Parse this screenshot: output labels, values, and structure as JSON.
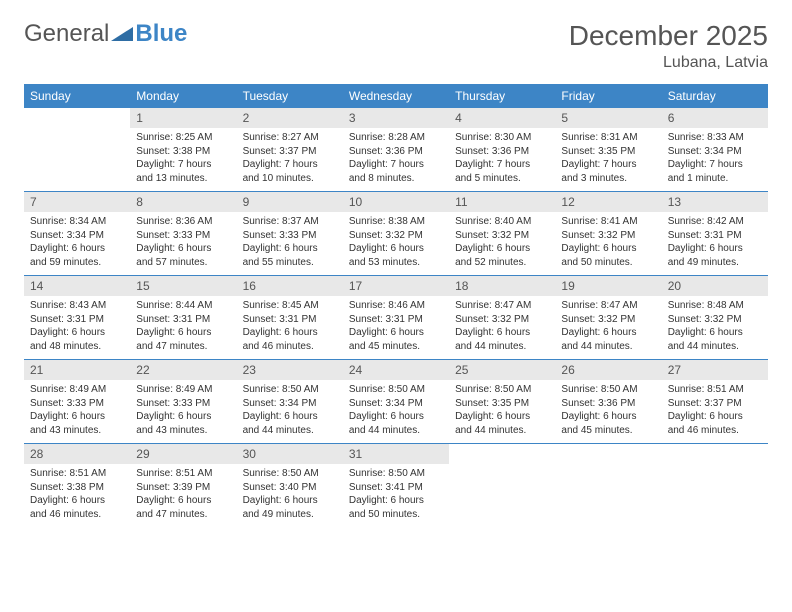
{
  "logo": {
    "text1": "General",
    "text2": "Blue"
  },
  "title": "December 2025",
  "location": "Lubana, Latvia",
  "colors": {
    "header_bg": "#3d85c6",
    "header_fg": "#ffffff",
    "daynum_bg": "#e8e8e8",
    "daynum_fg": "#555555",
    "body_fg": "#333333",
    "rule": "#3d85c6",
    "page_bg": "#ffffff",
    "title_fg": "#555555",
    "logo_blue": "#3d85c6"
  },
  "typography": {
    "title_fontsize": 28,
    "location_fontsize": 16,
    "header_fontsize": 12,
    "daynum_fontsize": 12,
    "body_fontsize": 10
  },
  "layout": {
    "columns": 7,
    "rows": 5,
    "cell_width_pct": 14.28
  },
  "weekdays": [
    "Sunday",
    "Monday",
    "Tuesday",
    "Wednesday",
    "Thursday",
    "Friday",
    "Saturday"
  ],
  "weeks": [
    [
      {
        "empty": true
      },
      {
        "n": "1",
        "sunrise": "Sunrise: 8:25 AM",
        "sunset": "Sunset: 3:38 PM",
        "daylight": "Daylight: 7 hours and 13 minutes."
      },
      {
        "n": "2",
        "sunrise": "Sunrise: 8:27 AM",
        "sunset": "Sunset: 3:37 PM",
        "daylight": "Daylight: 7 hours and 10 minutes."
      },
      {
        "n": "3",
        "sunrise": "Sunrise: 8:28 AM",
        "sunset": "Sunset: 3:36 PM",
        "daylight": "Daylight: 7 hours and 8 minutes."
      },
      {
        "n": "4",
        "sunrise": "Sunrise: 8:30 AM",
        "sunset": "Sunset: 3:36 PM",
        "daylight": "Daylight: 7 hours and 5 minutes."
      },
      {
        "n": "5",
        "sunrise": "Sunrise: 8:31 AM",
        "sunset": "Sunset: 3:35 PM",
        "daylight": "Daylight: 7 hours and 3 minutes."
      },
      {
        "n": "6",
        "sunrise": "Sunrise: 8:33 AM",
        "sunset": "Sunset: 3:34 PM",
        "daylight": "Daylight: 7 hours and 1 minute."
      }
    ],
    [
      {
        "n": "7",
        "sunrise": "Sunrise: 8:34 AM",
        "sunset": "Sunset: 3:34 PM",
        "daylight": "Daylight: 6 hours and 59 minutes."
      },
      {
        "n": "8",
        "sunrise": "Sunrise: 8:36 AM",
        "sunset": "Sunset: 3:33 PM",
        "daylight": "Daylight: 6 hours and 57 minutes."
      },
      {
        "n": "9",
        "sunrise": "Sunrise: 8:37 AM",
        "sunset": "Sunset: 3:33 PM",
        "daylight": "Daylight: 6 hours and 55 minutes."
      },
      {
        "n": "10",
        "sunrise": "Sunrise: 8:38 AM",
        "sunset": "Sunset: 3:32 PM",
        "daylight": "Daylight: 6 hours and 53 minutes."
      },
      {
        "n": "11",
        "sunrise": "Sunrise: 8:40 AM",
        "sunset": "Sunset: 3:32 PM",
        "daylight": "Daylight: 6 hours and 52 minutes."
      },
      {
        "n": "12",
        "sunrise": "Sunrise: 8:41 AM",
        "sunset": "Sunset: 3:32 PM",
        "daylight": "Daylight: 6 hours and 50 minutes."
      },
      {
        "n": "13",
        "sunrise": "Sunrise: 8:42 AM",
        "sunset": "Sunset: 3:31 PM",
        "daylight": "Daylight: 6 hours and 49 minutes."
      }
    ],
    [
      {
        "n": "14",
        "sunrise": "Sunrise: 8:43 AM",
        "sunset": "Sunset: 3:31 PM",
        "daylight": "Daylight: 6 hours and 48 minutes."
      },
      {
        "n": "15",
        "sunrise": "Sunrise: 8:44 AM",
        "sunset": "Sunset: 3:31 PM",
        "daylight": "Daylight: 6 hours and 47 minutes."
      },
      {
        "n": "16",
        "sunrise": "Sunrise: 8:45 AM",
        "sunset": "Sunset: 3:31 PM",
        "daylight": "Daylight: 6 hours and 46 minutes."
      },
      {
        "n": "17",
        "sunrise": "Sunrise: 8:46 AM",
        "sunset": "Sunset: 3:31 PM",
        "daylight": "Daylight: 6 hours and 45 minutes."
      },
      {
        "n": "18",
        "sunrise": "Sunrise: 8:47 AM",
        "sunset": "Sunset: 3:32 PM",
        "daylight": "Daylight: 6 hours and 44 minutes."
      },
      {
        "n": "19",
        "sunrise": "Sunrise: 8:47 AM",
        "sunset": "Sunset: 3:32 PM",
        "daylight": "Daylight: 6 hours and 44 minutes."
      },
      {
        "n": "20",
        "sunrise": "Sunrise: 8:48 AM",
        "sunset": "Sunset: 3:32 PM",
        "daylight": "Daylight: 6 hours and 44 minutes."
      }
    ],
    [
      {
        "n": "21",
        "sunrise": "Sunrise: 8:49 AM",
        "sunset": "Sunset: 3:33 PM",
        "daylight": "Daylight: 6 hours and 43 minutes."
      },
      {
        "n": "22",
        "sunrise": "Sunrise: 8:49 AM",
        "sunset": "Sunset: 3:33 PM",
        "daylight": "Daylight: 6 hours and 43 minutes."
      },
      {
        "n": "23",
        "sunrise": "Sunrise: 8:50 AM",
        "sunset": "Sunset: 3:34 PM",
        "daylight": "Daylight: 6 hours and 44 minutes."
      },
      {
        "n": "24",
        "sunrise": "Sunrise: 8:50 AM",
        "sunset": "Sunset: 3:34 PM",
        "daylight": "Daylight: 6 hours and 44 minutes."
      },
      {
        "n": "25",
        "sunrise": "Sunrise: 8:50 AM",
        "sunset": "Sunset: 3:35 PM",
        "daylight": "Daylight: 6 hours and 44 minutes."
      },
      {
        "n": "26",
        "sunrise": "Sunrise: 8:50 AM",
        "sunset": "Sunset: 3:36 PM",
        "daylight": "Daylight: 6 hours and 45 minutes."
      },
      {
        "n": "27",
        "sunrise": "Sunrise: 8:51 AM",
        "sunset": "Sunset: 3:37 PM",
        "daylight": "Daylight: 6 hours and 46 minutes."
      }
    ],
    [
      {
        "n": "28",
        "sunrise": "Sunrise: 8:51 AM",
        "sunset": "Sunset: 3:38 PM",
        "daylight": "Daylight: 6 hours and 46 minutes."
      },
      {
        "n": "29",
        "sunrise": "Sunrise: 8:51 AM",
        "sunset": "Sunset: 3:39 PM",
        "daylight": "Daylight: 6 hours and 47 minutes."
      },
      {
        "n": "30",
        "sunrise": "Sunrise: 8:50 AM",
        "sunset": "Sunset: 3:40 PM",
        "daylight": "Daylight: 6 hours and 49 minutes."
      },
      {
        "n": "31",
        "sunrise": "Sunrise: 8:50 AM",
        "sunset": "Sunset: 3:41 PM",
        "daylight": "Daylight: 6 hours and 50 minutes."
      },
      {
        "empty": true
      },
      {
        "empty": true
      },
      {
        "empty": true
      }
    ]
  ]
}
